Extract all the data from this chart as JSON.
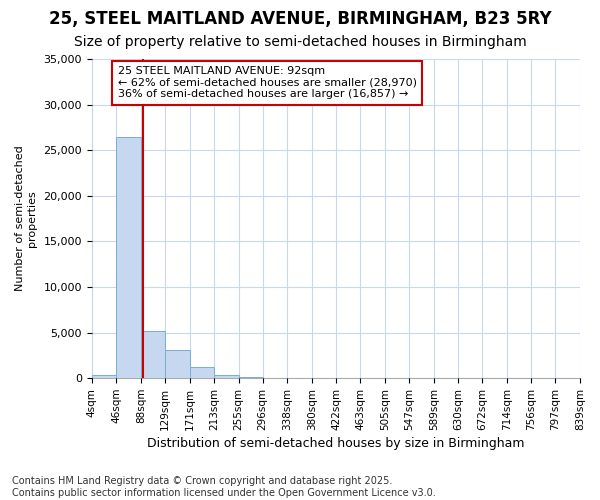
{
  "title": "25, STEEL MAITLAND AVENUE, BIRMINGHAM, B23 5RY",
  "subtitle": "Size of property relative to semi-detached houses in Birmingham",
  "xlabel": "Distribution of semi-detached houses by size in Birmingham",
  "ylabel": "Number of semi-detached\nproperties",
  "bar_values": [
    300,
    26500,
    5200,
    3100,
    1200,
    400,
    100,
    20,
    5,
    2,
    0,
    0,
    0,
    0,
    0,
    0,
    0,
    0,
    0,
    0
  ],
  "bin_edges": [
    4,
    46,
    88,
    129,
    171,
    213,
    255,
    296,
    338,
    380,
    422,
    463,
    505,
    547,
    589,
    630,
    672,
    714,
    756,
    797,
    839
  ],
  "tick_labels": [
    "4sqm",
    "46sqm",
    "88sqm",
    "129sqm",
    "171sqm",
    "213sqm",
    "255sqm",
    "296sqm",
    "338sqm",
    "380sqm",
    "422sqm",
    "463sqm",
    "505sqm",
    "547sqm",
    "589sqm",
    "630sqm",
    "672sqm",
    "714sqm",
    "756sqm",
    "797sqm",
    "839sqm"
  ],
  "bar_color": "#c5d8ef",
  "bar_edge_color": "#7badd4",
  "ylim": [
    0,
    35000
  ],
  "yticks": [
    0,
    5000,
    10000,
    15000,
    20000,
    25000,
    30000,
    35000
  ],
  "red_line_x": 92,
  "annotation_text": "25 STEEL MAITLAND AVENUE: 92sqm\n← 62% of semi-detached houses are smaller (28,970)\n36% of semi-detached houses are larger (16,857) →",
  "annotation_box_color": "#ffffff",
  "annotation_box_edge": "#cc0000",
  "red_line_color": "#cc0000",
  "footer_text": "Contains HM Land Registry data © Crown copyright and database right 2025.\nContains public sector information licensed under the Open Government Licence v3.0.",
  "background_color": "#ffffff",
  "plot_background": "#ffffff",
  "grid_color": "#c8d8ee",
  "title_fontsize": 12,
  "subtitle_fontsize": 10,
  "footer_fontsize": 7
}
